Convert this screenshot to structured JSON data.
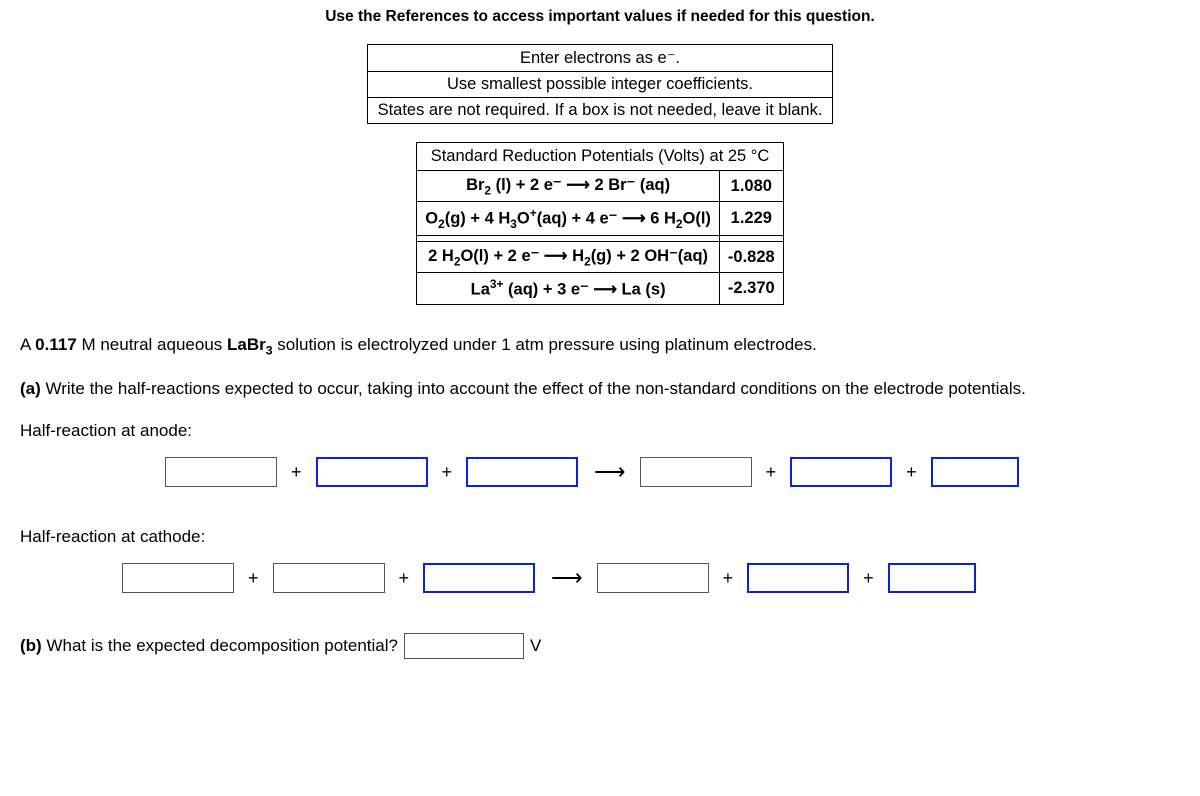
{
  "header_ref": "Use the References to access important values if needed for this question.",
  "instructions": {
    "line1": "Enter electrons as e⁻.",
    "line2": "Use smallest possible integer coefficients.",
    "line3": "States are not required. If a box is not needed, leave it blank."
  },
  "srp": {
    "title": "Standard Reduction Potentials (Volts) at 25 °C",
    "rows": [
      {
        "rxn": "Br₂ (l) + 2 e⁻ ⟶ 2 Br⁻ (aq)",
        "volts": "1.080"
      },
      {
        "rxn": "O₂(g) + 4 H₃O⁺(aq) + 4 e⁻ ⟶ 6 H₂O(l)",
        "volts": "1.229"
      },
      {
        "rxn": "2 H₂O(l) + 2 e⁻ ⟶ H₂(g) + 2 OH⁻(aq)",
        "volts": "-0.828"
      },
      {
        "rxn": "La³⁺ (aq) + 3 e⁻ ⟶ La (s)",
        "volts": "-2.370"
      }
    ]
  },
  "intro": {
    "pre": "A ",
    "conc": "0.117",
    "mid": " M neutral aqueous ",
    "species": "LaBr₃",
    "post": " solution is electrolyzed under 1 atm pressure using platinum electrodes."
  },
  "part_a": {
    "label": "(a)",
    "text": " Write the half-reactions expected to occur, taking into account the effect of the non-standard conditions on the electrode potentials."
  },
  "anode_label": "Half-reaction at anode:",
  "cathode_label": "Half-reaction at cathode:",
  "part_b": {
    "label": "(b)",
    "text": " What is the expected decomposition potential?",
    "unit": "V"
  },
  "symbols": {
    "plus": "+",
    "arrow": "⟶"
  },
  "colors": {
    "blue_border": "#0b23d6",
    "black": "#000000",
    "grey_border": "#555555"
  }
}
